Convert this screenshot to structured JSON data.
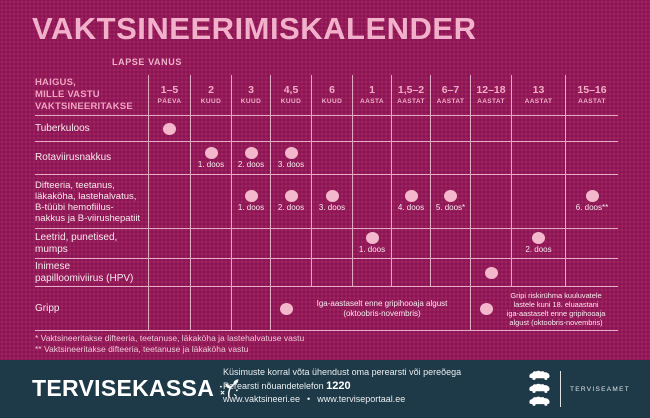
{
  "title": "VAKTSINEERIMISKALENDER",
  "table": {
    "age_axis_label": "LAPSE VANUS",
    "row_header": "HAIGUS,\nMILLE VASTU\nVAKTSINEERITAKSE",
    "columns": [
      {
        "value": "1–5",
        "unit": "PÄEVA"
      },
      {
        "value": "2",
        "unit": "KUUD"
      },
      {
        "value": "3",
        "unit": "KUUD"
      },
      {
        "value": "4,5",
        "unit": "KUUD"
      },
      {
        "value": "6",
        "unit": "KUUD"
      },
      {
        "value": "1",
        "unit": "AASTA"
      },
      {
        "value": "1,5–2",
        "unit": "AASTAT"
      },
      {
        "value": "6–7",
        "unit": "AASTAT"
      },
      {
        "value": "12–18",
        "unit": "AASTAT"
      },
      {
        "value": "13",
        "unit": "AASTAT"
      },
      {
        "value": "15–16",
        "unit": "AASTAT"
      }
    ],
    "rows": [
      {
        "disease": "Tuberkuloos",
        "cells": [
          {
            "col": 1,
            "dot": true,
            "label": ""
          }
        ]
      },
      {
        "disease": "Rotaviirusnakkus",
        "cells": [
          {
            "col": 2,
            "dot": true,
            "label": "1. doos"
          },
          {
            "col": 3,
            "dot": true,
            "label": "2. doos"
          },
          {
            "col": 4,
            "dot": true,
            "label": "3. doos"
          }
        ]
      },
      {
        "disease": "Difteeria, teetanus,\nläkaköha, lastehalvatus,\nB-tüübi hemofiilus-\nnakkus ja B-viirushepatiit",
        "cells": [
          {
            "col": 3,
            "dot": true,
            "label": "1. doos"
          },
          {
            "col": 4,
            "dot": true,
            "label": "2. doos"
          },
          {
            "col": 5,
            "dot": true,
            "label": "3. doos"
          },
          {
            "col": 7,
            "dot": true,
            "label": "4. doos"
          },
          {
            "col": 8,
            "dot": true,
            "label": "5. doos*"
          },
          {
            "col": 11,
            "dot": true,
            "label": "6. doos**"
          }
        ]
      },
      {
        "disease": "Leetrid, punetised,\nmumps",
        "cells": [
          {
            "col": 6,
            "dot": true,
            "label": "1. doos"
          },
          {
            "col": 10,
            "dot": true,
            "label": "2. doos"
          }
        ]
      },
      {
        "disease": "Inimese\npapilloomiviirus (HPV)",
        "cells": [
          {
            "col": 9,
            "dot": true,
            "label": ""
          }
        ]
      },
      {
        "disease": "Gripp",
        "cells": [
          {
            "col": 4,
            "span": 5,
            "dot": true,
            "text": "Iga-aastaselt enne gripihooaja algust\n(oktoobris-novembris)"
          },
          {
            "col": 9,
            "span": 3,
            "dot": true,
            "text": "Gripi riskirühma kuuluvatele\nlastele kuni 18. eluaastani\niga-aastaselt enne gripihooaja\nalgust (oktoobris-novembris)"
          }
        ]
      }
    ]
  },
  "footnotes": [
    "* Vaktsineeritakse difteeria, teetanuse, läkaköha ja lastehalvatuse vastu",
    "** Vaktsineeritakse difteeria, teetanuse ja läkaköha vastu"
  ],
  "footer": {
    "brand": "TERVISEKASSA",
    "info_line1": "Küsimuste korral võta ühendust oma perearsti või pereõega",
    "info_line2_label": "Perearsti nõuandetelefon",
    "phone": "1220",
    "site1": "www.vaktsineeri.ee",
    "separator": "•",
    "site2": "www.terviseportaal.ee",
    "agency": "TERVISEAMET"
  },
  "colors": {
    "background": "#95195a",
    "accent_pink": "#f2b1cb",
    "dot_pink": "#f3b8cc",
    "row_text": "#f7e9ef",
    "footer_background": "#1e3947",
    "footer_text": "#ffffff"
  }
}
